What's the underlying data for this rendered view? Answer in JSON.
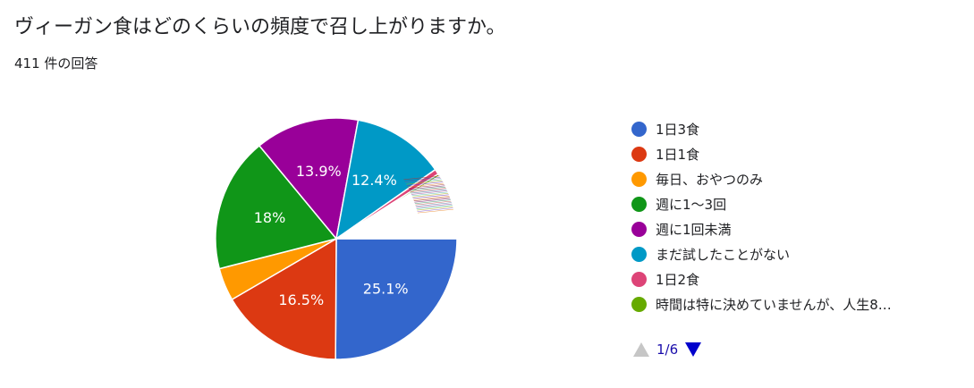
{
  "title": "ヴィーガン食はどのくらいの頻度で召し上がりますか。",
  "response_count": "411 件の回答",
  "chart_data": {
    "type": "pie",
    "title": "ヴィーガン食はどのくらいの頻度で召し上がりますか。",
    "start_angle_deg": 90,
    "direction": "clockwise",
    "slices": [
      {
        "label": "1日3食",
        "value": 25.1,
        "color": "#3366cc",
        "display": "25.1%"
      },
      {
        "label": "1日1食",
        "value": 16.5,
        "color": "#dc3912",
        "display": "16.5%"
      },
      {
        "label": "毎日、おやつのみ",
        "value": 4.4,
        "color": "#ff9900",
        "display": ""
      },
      {
        "label": "週に1〜3回",
        "value": 18.0,
        "color": "#109618",
        "display": "18%"
      },
      {
        "label": "週に1回未満",
        "value": 13.9,
        "color": "#990099",
        "display": "13.9%"
      },
      {
        "label": "まだ試したことがない",
        "value": 12.4,
        "color": "#0099c6",
        "display": "12.4%"
      },
      {
        "label": "1日2食",
        "value": 0.7,
        "color": "#dd4477",
        "display": ""
      },
      {
        "label": "時間は特に決めていませんが、人生8…",
        "value": 0.3,
        "color": "#66aa00",
        "display": ""
      },
      {
        "label": "",
        "value": 8.7,
        "color": "#ffffff",
        "display": ""
      }
    ]
  },
  "legend": [
    {
      "label": "1日3食",
      "color": "#3366cc"
    },
    {
      "label": "1日1食",
      "color": "#dc3912"
    },
    {
      "label": "毎日、おやつのみ",
      "color": "#ff9900"
    },
    {
      "label": "週に1〜3回",
      "color": "#109618"
    },
    {
      "label": "週に1回未満",
      "color": "#990099"
    },
    {
      "label": "まだ試したことがない",
      "color": "#0099c6"
    },
    {
      "label": "1日2食",
      "color": "#dd4477"
    },
    {
      "label": "時間は特に決めていませんが、人生8…",
      "color": "#66aa00"
    }
  ],
  "pager": {
    "text": "1/6",
    "prev_color": "#c6c6c6",
    "next_color": "#0000cc"
  }
}
